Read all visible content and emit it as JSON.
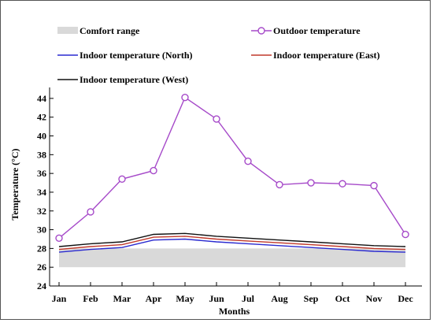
{
  "chart_data": {
    "type": "line",
    "title": "",
    "xlabel": "Months",
    "ylabel": "Temperature (°C)",
    "categories": [
      "Jan",
      "Feb",
      "Mar",
      "Apr",
      "May",
      "Jun",
      "Jul",
      "Aug",
      "Sep",
      "Oct",
      "Nov",
      "Dec"
    ],
    "ylim": [
      24,
      45
    ],
    "yticks": [
      24,
      26,
      28,
      30,
      32,
      34,
      36,
      38,
      40,
      42,
      44
    ],
    "grid": false,
    "legend_placement": "top",
    "comfort_range": {
      "name": "Comfort range",
      "low": 26,
      "high": 28,
      "color": "#d9d9d9"
    },
    "series": [
      {
        "name": "Outdoor temperature",
        "color": "#a64ac9",
        "marker": "circle",
        "values": [
          29.1,
          31.9,
          35.4,
          36.3,
          44.1,
          41.8,
          37.3,
          34.8,
          35.0,
          34.9,
          34.7,
          29.5
        ]
      },
      {
        "name": "Indoor temperature (North)",
        "color": "#2a2ad0",
        "marker": "none",
        "values": [
          27.6,
          27.9,
          28.1,
          28.9,
          29.0,
          28.7,
          28.5,
          28.3,
          28.1,
          27.9,
          27.7,
          27.6
        ]
      },
      {
        "name": "Indoor temperature (East)",
        "color": "#c0392b",
        "marker": "none",
        "values": [
          27.9,
          28.2,
          28.4,
          29.2,
          29.3,
          29.0,
          28.8,
          28.6,
          28.4,
          28.2,
          28.0,
          27.9
        ]
      },
      {
        "name": "Indoor temperature (West)",
        "color": "#111111",
        "marker": "none",
        "values": [
          28.2,
          28.5,
          28.7,
          29.5,
          29.6,
          29.3,
          29.1,
          28.9,
          28.7,
          28.5,
          28.3,
          28.2
        ]
      }
    ]
  }
}
